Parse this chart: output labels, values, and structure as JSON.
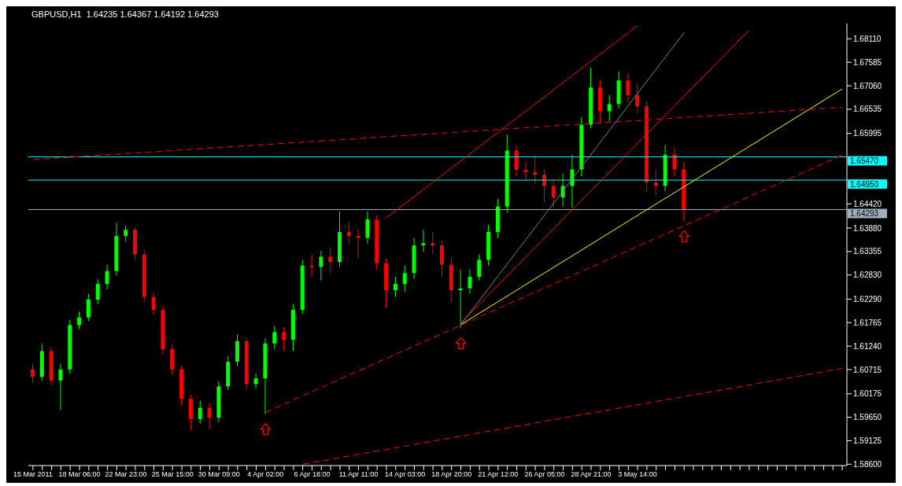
{
  "chart_data": {
    "type": "candlestick",
    "title": "GBPUSD,H1  1.64235 1.64367 1.64192 1.64293",
    "categories": [
      "15 Mar 2011",
      null,
      null,
      null,
      null,
      "18 Mar 06:00",
      null,
      null,
      null,
      null,
      "22 Mar 23:00",
      null,
      null,
      null,
      null,
      "25 Mar 15:00",
      null,
      null,
      null,
      null,
      "30 Mar 09:00",
      null,
      null,
      null,
      null,
      "4 Apr 02:00",
      null,
      null,
      null,
      null,
      "6 Apr 18:00",
      null,
      null,
      null,
      null,
      "11 Apr 11:00",
      null,
      null,
      null,
      null,
      "14 Apr 03:00",
      null,
      null,
      null,
      null,
      "18 Apr 20:00",
      null,
      null,
      null,
      null,
      "21 Apr 12:00",
      null,
      null,
      null,
      null,
      "26 Apr 05:00",
      null,
      null,
      null,
      null,
      "28 Apr 21:00",
      null,
      null,
      null,
      null,
      "3 May 14:00",
      null,
      null,
      null,
      null,
      null,
      null,
      null,
      null,
      null,
      null,
      null,
      null,
      null,
      null,
      null,
      null,
      null,
      null,
      null,
      null,
      null,
      null
    ],
    "ohlc": [
      [
        1.6072,
        1.6085,
        1.6042,
        1.6055
      ],
      [
        1.6055,
        1.613,
        1.6046,
        1.6113
      ],
      [
        1.6113,
        1.6122,
        1.6036,
        1.6047
      ],
      [
        1.6047,
        1.6085,
        1.5981,
        1.6072
      ],
      [
        1.6072,
        1.6183,
        1.6062,
        1.6171
      ],
      [
        1.6171,
        1.6201,
        1.6162,
        1.6188
      ],
      [
        1.6188,
        1.6241,
        1.618,
        1.6228
      ],
      [
        1.6228,
        1.6274,
        1.6218,
        1.6263
      ],
      [
        1.6263,
        1.6306,
        1.6251,
        1.6292
      ],
      [
        1.6292,
        1.64,
        1.6282,
        1.637
      ],
      [
        1.637,
        1.6393,
        1.6357,
        1.6384
      ],
      [
        1.6384,
        1.6389,
        1.6317,
        1.6329
      ],
      [
        1.6329,
        1.634,
        1.6221,
        1.6234
      ],
      [
        1.6234,
        1.6244,
        1.6193,
        1.6205
      ],
      [
        1.6205,
        1.6213,
        1.6105,
        1.6117
      ],
      [
        1.6117,
        1.6127,
        1.6059,
        1.6072
      ],
      [
        1.6072,
        1.608,
        1.5992,
        1.6006
      ],
      [
        1.6006,
        1.6014,
        1.5936,
        1.5961
      ],
      [
        1.5961,
        1.6002,
        1.5951,
        1.5986
      ],
      [
        1.5986,
        1.5997,
        1.5939,
        1.5964
      ],
      [
        1.5964,
        1.6046,
        1.5954,
        1.6034
      ],
      [
        1.6034,
        1.6102,
        1.6026,
        1.6089
      ],
      [
        1.6089,
        1.615,
        1.6079,
        1.6135
      ],
      [
        1.6135,
        1.6143,
        1.6027,
        1.6039
      ],
      [
        1.6039,
        1.6063,
        1.6029,
        1.6052
      ],
      [
        1.6052,
        1.6141,
        1.5972,
        1.613
      ],
      [
        1.613,
        1.6168,
        1.6118,
        1.6155
      ],
      [
        1.6155,
        1.6166,
        1.6113,
        1.6138
      ],
      [
        1.6138,
        1.6218,
        1.6113,
        1.6205
      ],
      [
        1.6205,
        1.6317,
        1.6196,
        1.6304
      ],
      [
        1.6304,
        1.6329,
        1.6279,
        1.6301
      ],
      [
        1.6301,
        1.6337,
        1.6271,
        1.6324
      ],
      [
        1.6324,
        1.6345,
        1.6287,
        1.6312
      ],
      [
        1.6312,
        1.6425,
        1.6301,
        1.6379
      ],
      [
        1.6379,
        1.6403,
        1.6353,
        1.637
      ],
      [
        1.637,
        1.6386,
        1.632,
        1.6366
      ],
      [
        1.6366,
        1.6425,
        1.6353,
        1.6407
      ],
      [
        1.6407,
        1.6417,
        1.6295,
        1.6309
      ],
      [
        1.6309,
        1.632,
        1.6209,
        1.6249
      ],
      [
        1.6249,
        1.6279,
        1.6234,
        1.6263
      ],
      [
        1.6263,
        1.6304,
        1.6246,
        1.6287
      ],
      [
        1.6287,
        1.6366,
        1.6274,
        1.6349
      ],
      [
        1.6349,
        1.6384,
        1.6334,
        1.6354
      ],
      [
        1.6354,
        1.6379,
        1.6329,
        1.6349
      ],
      [
        1.6349,
        1.6361,
        1.6279,
        1.6306
      ],
      [
        1.6306,
        1.632,
        1.6221,
        1.6249
      ],
      [
        1.6249,
        1.6295,
        1.6164,
        1.6253
      ],
      [
        1.6253,
        1.6295,
        1.6241,
        1.6279
      ],
      [
        1.6279,
        1.6329,
        1.6271,
        1.6317
      ],
      [
        1.6317,
        1.6395,
        1.6304,
        1.6379
      ],
      [
        1.6379,
        1.6453,
        1.6366,
        1.6436
      ],
      [
        1.6436,
        1.6597,
        1.6423,
        1.6561
      ],
      [
        1.6561,
        1.6572,
        1.6503,
        1.6518
      ],
      [
        1.6518,
        1.6536,
        1.6494,
        1.6513
      ],
      [
        1.6513,
        1.6552,
        1.6486,
        1.6507
      ],
      [
        1.6507,
        1.6519,
        1.6445,
        1.6482
      ],
      [
        1.6482,
        1.6494,
        1.6433,
        1.6456
      ],
      [
        1.6456,
        1.651,
        1.6436,
        1.6482
      ],
      [
        1.6482,
        1.6552,
        1.6433,
        1.6519
      ],
      [
        1.6519,
        1.6635,
        1.6503,
        1.6619
      ],
      [
        1.6619,
        1.6746,
        1.6611,
        1.6702
      ],
      [
        1.6702,
        1.6718,
        1.6622,
        1.6649
      ],
      [
        1.6649,
        1.6685,
        1.6627,
        1.6665
      ],
      [
        1.6665,
        1.6738,
        1.6655,
        1.6718
      ],
      [
        1.6718,
        1.6735,
        1.6669,
        1.6685
      ],
      [
        1.6685,
        1.671,
        1.6644,
        1.666
      ],
      [
        1.666,
        1.6672,
        1.647,
        1.649
      ],
      [
        1.649,
        1.6519,
        1.6461,
        1.6482
      ],
      [
        1.6482,
        1.6574,
        1.647,
        1.6552
      ],
      [
        1.6552,
        1.6569,
        1.6503,
        1.6519
      ],
      [
        1.6519,
        1.6536,
        1.6403,
        1.64293
      ],
      null,
      null,
      null,
      null,
      null,
      null,
      null,
      null,
      null,
      null,
      null,
      null,
      null,
      null,
      null,
      null,
      null
    ],
    "colors": [
      "#ff0000",
      "#00ff00",
      "#ff0000",
      "#00ff00",
      "#00ff00",
      "#00ff00",
      "#00ff00",
      "#00ff00",
      "#00ff00",
      "#00ff00",
      "#00ff00",
      "#ff0000",
      "#ff0000",
      "#ff0000",
      "#ff0000",
      "#ff0000",
      "#ff0000",
      "#ff0000",
      "#00ff00",
      "#ff0000",
      "#00ff00",
      "#00ff00",
      "#00ff00",
      "#ff0000",
      "#00ff00",
      "#00ff00",
      "#00ff00",
      "#ff0000",
      "#00ff00",
      "#00ff00",
      "#ff0000",
      "#00ff00",
      "#ff0000",
      "#00ff00",
      "#ff0000",
      "#ff0000",
      "#00ff00",
      "#ff0000",
      "#ff0000",
      "#00ff00",
      "#00ff00",
      "#00ff00",
      "#00ff00",
      "#ff0000",
      "#ff0000",
      "#ff0000",
      "#00ff00",
      "#00ff00",
      "#00ff00",
      "#00ff00",
      "#00ff00",
      "#00ff00",
      "#ff0000",
      "#ff0000",
      "#ff0000",
      "#ff0000",
      "#ff0000",
      "#00ff00",
      "#00ff00",
      "#00ff00",
      "#00ff00",
      "#ff0000",
      "#00ff00",
      "#00ff00",
      "#ff0000",
      "#ff0000",
      "#ff0000",
      "#ff0000",
      "#00ff00",
      "#ff0000",
      "#ff0000",
      null,
      null,
      null,
      null,
      null,
      null,
      null,
      null,
      null,
      null,
      null,
      null,
      null,
      null,
      null,
      null,
      null
    ],
    "series": [
      {
        "type": "line",
        "color": "#ffff00",
        "line_style": "solid",
        "values": [
          null,
          null,
          null,
          null,
          null,
          null,
          null,
          null,
          null,
          null,
          null,
          null,
          null,
          null,
          null,
          null,
          null,
          null,
          null,
          null,
          null,
          null,
          null,
          null,
          null,
          null,
          null,
          null,
          null,
          null,
          null,
          null,
          null,
          null,
          null,
          null,
          null,
          null,
          null,
          null,
          null,
          null,
          null,
          null,
          null,
          null,
          1.6172,
          null,
          null,
          null,
          null,
          null,
          null,
          null,
          null,
          null,
          null,
          null,
          null,
          null,
          null,
          null,
          null,
          null,
          null,
          null,
          null,
          null,
          null,
          null,
          null,
          null,
          null,
          null,
          null,
          null,
          null,
          null,
          null,
          null,
          null,
          null,
          null,
          null,
          null,
          null,
          null,
          1.6699
        ]
      },
      {
        "type": "line",
        "color": "#ff0000",
        "line_style": "dashed",
        "values": [
          null,
          null,
          null,
          null,
          null,
          null,
          null,
          null,
          null,
          null,
          null,
          null,
          null,
          null,
          null,
          null,
          null,
          null,
          null,
          null,
          null,
          null,
          null,
          null,
          null,
          1.5976,
          null,
          null,
          null,
          null,
          null,
          null,
          null,
          null,
          null,
          null,
          null,
          null,
          null,
          null,
          null,
          null,
          null,
          null,
          null,
          null,
          null,
          null,
          null,
          null,
          null,
          null,
          null,
          null,
          null,
          null,
          null,
          null,
          null,
          null,
          null,
          null,
          null,
          null,
          null,
          null,
          null,
          null,
          null,
          null,
          null,
          null,
          null,
          null,
          null,
          null,
          null,
          null,
          null,
          null,
          null,
          null,
          null,
          null,
          null,
          null,
          null,
          1.6551
        ]
      },
      {
        "type": "line",
        "color": "#ff0000",
        "line_style": "dashed",
        "values": [
          null,
          null,
          null,
          null,
          null,
          null,
          null,
          null,
          null,
          null,
          null,
          null,
          null,
          null,
          null,
          null,
          null,
          null,
          null,
          null,
          null,
          null,
          null,
          null,
          null,
          null,
          null,
          null,
          null,
          1.586,
          null,
          null,
          null,
          null,
          null,
          null,
          null,
          null,
          null,
          null,
          null,
          null,
          null,
          null,
          null,
          null,
          null,
          null,
          null,
          null,
          null,
          null,
          null,
          null,
          null,
          null,
          null,
          null,
          null,
          null,
          null,
          null,
          null,
          null,
          null,
          null,
          null,
          null,
          null,
          null,
          null,
          null,
          null,
          null,
          null,
          null,
          null,
          null,
          null,
          null,
          null,
          null,
          null,
          null,
          null,
          null,
          null,
          1.6074
        ]
      },
      {
        "type": "line",
        "color": "#ff0000",
        "line_style": "dashed",
        "values": [
          1.6541,
          null,
          null,
          null,
          null,
          null,
          null,
          null,
          null,
          null,
          null,
          null,
          null,
          null,
          null,
          null,
          null,
          null,
          null,
          null,
          null,
          null,
          null,
          null,
          null,
          null,
          null,
          null,
          null,
          null,
          null,
          null,
          null,
          null,
          null,
          null,
          null,
          null,
          null,
          null,
          null,
          null,
          null,
          null,
          null,
          null,
          null,
          null,
          null,
          null,
          null,
          null,
          null,
          null,
          null,
          null,
          null,
          null,
          null,
          null,
          null,
          null,
          null,
          null,
          null,
          null,
          null,
          null,
          null,
          null,
          null,
          null,
          null,
          null,
          null,
          null,
          null,
          null,
          null,
          null,
          null,
          null,
          null,
          null,
          null,
          null,
          null,
          1.6658
        ]
      },
      {
        "type": "line",
        "color": "#ff0000",
        "line_style": "solid",
        "values": [
          null,
          null,
          null,
          null,
          null,
          null,
          null,
          null,
          null,
          null,
          null,
          null,
          null,
          null,
          null,
          null,
          null,
          null,
          null,
          null,
          null,
          null,
          null,
          null,
          null,
          null,
          null,
          null,
          null,
          null,
          null,
          null,
          null,
          null,
          null,
          null,
          null,
          null,
          1.6411,
          null,
          null,
          null,
          null,
          null,
          null,
          null,
          null,
          null,
          null,
          null,
          null,
          null,
          null,
          null,
          null,
          null,
          null,
          null,
          null,
          null,
          null,
          null,
          null,
          null,
          null,
          1.6841,
          null,
          null,
          null,
          null,
          null,
          null,
          null,
          null,
          null,
          null,
          null,
          null,
          null,
          null,
          null,
          null,
          null,
          null,
          null,
          null,
          null,
          null
        ]
      },
      {
        "type": "line",
        "color": "#ff0000",
        "line_style": "solid",
        "values": [
          null,
          null,
          null,
          null,
          null,
          null,
          null,
          null,
          null,
          null,
          null,
          null,
          null,
          null,
          null,
          null,
          null,
          null,
          null,
          null,
          null,
          null,
          null,
          null,
          null,
          null,
          null,
          null,
          null,
          null,
          null,
          null,
          null,
          null,
          null,
          null,
          null,
          null,
          null,
          null,
          null,
          null,
          null,
          null,
          null,
          null,
          1.6176,
          null,
          null,
          null,
          null,
          null,
          null,
          null,
          null,
          null,
          null,
          null,
          null,
          null,
          null,
          null,
          null,
          null,
          null,
          null,
          null,
          null,
          null,
          null,
          null,
          null,
          null,
          null,
          null,
          null,
          null,
          1.6831,
          null,
          null,
          null,
          null,
          null,
          null,
          null,
          null,
          null,
          null
        ]
      },
      {
        "type": "line",
        "color": "#808080",
        "line_style": "solid",
        "values": [
          null,
          null,
          null,
          null,
          null,
          null,
          null,
          null,
          null,
          null,
          null,
          null,
          null,
          null,
          null,
          null,
          null,
          null,
          null,
          null,
          null,
          null,
          null,
          null,
          null,
          null,
          null,
          null,
          null,
          null,
          null,
          null,
          null,
          null,
          null,
          null,
          null,
          null,
          null,
          null,
          null,
          null,
          null,
          null,
          null,
          null,
          1.6172,
          null,
          null,
          null,
          null,
          null,
          null,
          null,
          null,
          null,
          null,
          null,
          null,
          null,
          null,
          null,
          null,
          null,
          null,
          null,
          null,
          null,
          null,
          null,
          1.6825,
          null,
          null,
          null,
          null,
          null,
          null,
          null,
          null,
          null,
          null,
          null,
          null,
          null,
          null,
          null,
          null,
          null
        ]
      }
    ],
    "ref_lines": [
      {
        "axis": "y",
        "value": 1.6547,
        "label": "1.65470",
        "color": "#00ffff"
      },
      {
        "axis": "y",
        "value": 1.6495,
        "label": "1.64950",
        "color": "#00ffff"
      },
      {
        "axis": "y",
        "value": 1.64293,
        "label": "1.64293",
        "color": "#a0b0c0"
      }
    ],
    "ylim": [
      1.5857,
      1.6845
    ],
    "yticks": [
      {
        "value": 1.6811,
        "label": "1.68110"
      },
      {
        "value": 1.67585,
        "label": "1.67585"
      },
      {
        "value": 1.6706,
        "label": "1.67060"
      },
      {
        "value": 1.66535,
        "label": "1.66535"
      },
      {
        "value": 1.65995,
        "label": "1.65995"
      },
      {
        "value": 1.6442,
        "label": "1.64420"
      },
      {
        "value": 1.6388,
        "label": "1.63880"
      },
      {
        "value": 1.63355,
        "label": "1.63355"
      },
      {
        "value": 1.6283,
        "label": "1.62830"
      },
      {
        "value": 1.6229,
        "label": "1.62290"
      },
      {
        "value": 1.61765,
        "label": "1.61765"
      },
      {
        "value": 1.6124,
        "label": "1.61240"
      },
      {
        "value": 1.60715,
        "label": "1.60715"
      },
      {
        "value": 1.60175,
        "label": "1.60175"
      },
      {
        "value": 1.5965,
        "label": "1.59650"
      },
      {
        "value": 1.59125,
        "label": "1.59125"
      },
      {
        "value": 1.586,
        "label": "1.58600"
      }
    ]
  }
}
